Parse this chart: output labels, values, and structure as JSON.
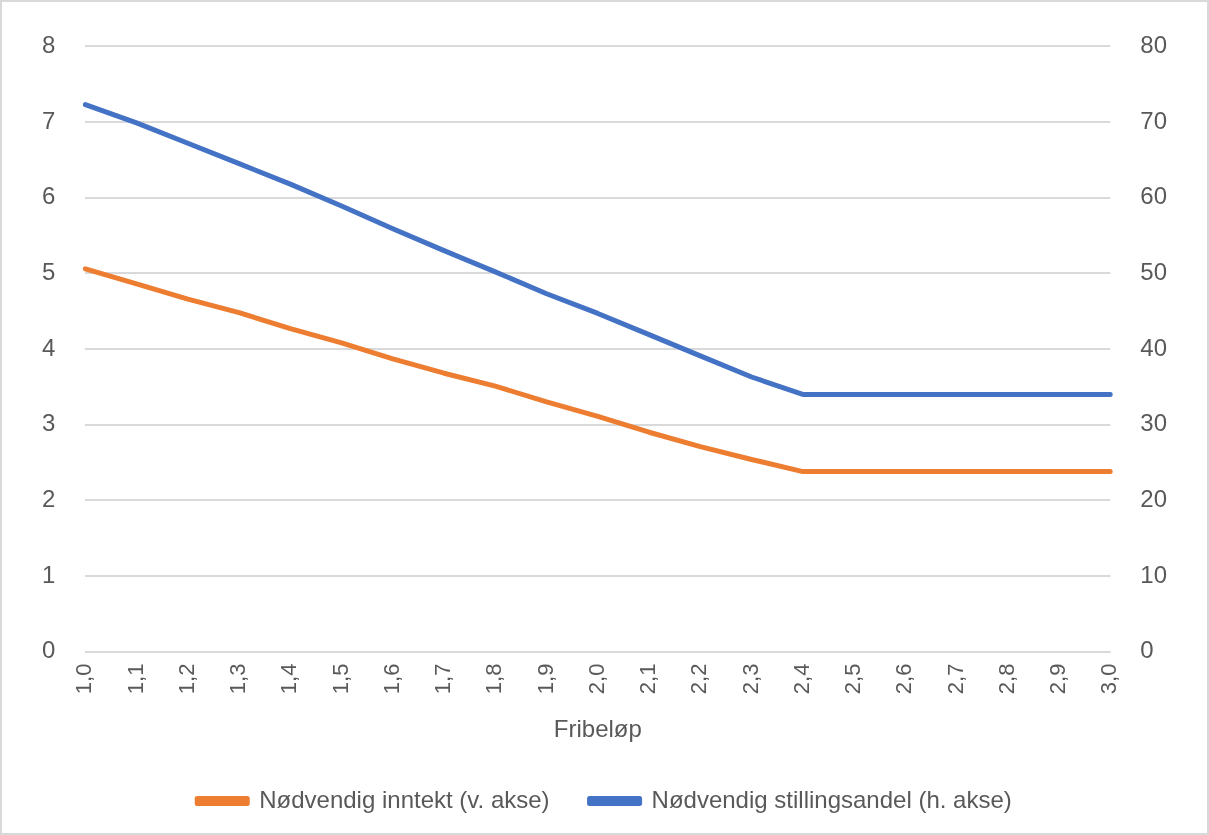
{
  "chart_data": {
    "type": "line",
    "xlabel": "Fribeløp",
    "categories": [
      "1,0",
      "1,1",
      "1,2",
      "1,3",
      "1,4",
      "1,5",
      "1,6",
      "1,7",
      "1,8",
      "1,9",
      "2,0",
      "2,1",
      "2,2",
      "2,3",
      "2,4",
      "2,5",
      "2,6",
      "2,7",
      "2,8",
      "2,9",
      "3,0"
    ],
    "series": [
      {
        "name": "Nødvendig inntekt (v. akse)",
        "color": "#ed7d31",
        "values": [
          5.06,
          4.86,
          4.66,
          4.48,
          4.27,
          4.08,
          3.87,
          3.68,
          3.51,
          3.3,
          3.11,
          2.9,
          2.71,
          2.54,
          2.38,
          2.38,
          2.38,
          2.38,
          2.38,
          2.38,
          2.38
        ]
      },
      {
        "name": "Nødvendig stillingsandel (h. akse)",
        "color": "#4472c4",
        "axis": "y2",
        "values": [
          72.3,
          69.9,
          67.2,
          64.5,
          61.8,
          58.9,
          55.9,
          53.0,
          50.2,
          47.3,
          44.7,
          41.9,
          39.1,
          36.3,
          34.0,
          34.0,
          34.0,
          34.0,
          34.0,
          34.0,
          34.0
        ]
      }
    ],
    "ylim": [
      0,
      8
    ],
    "yticks": [
      0,
      1,
      2,
      3,
      4,
      5,
      6,
      7,
      8
    ],
    "y2lim": [
      0,
      80
    ],
    "y2ticks": [
      0,
      10,
      20,
      30,
      40,
      50,
      60,
      70,
      80
    ],
    "grid": "y",
    "legend": "bottom",
    "marker": "none",
    "line_style": "solid"
  }
}
